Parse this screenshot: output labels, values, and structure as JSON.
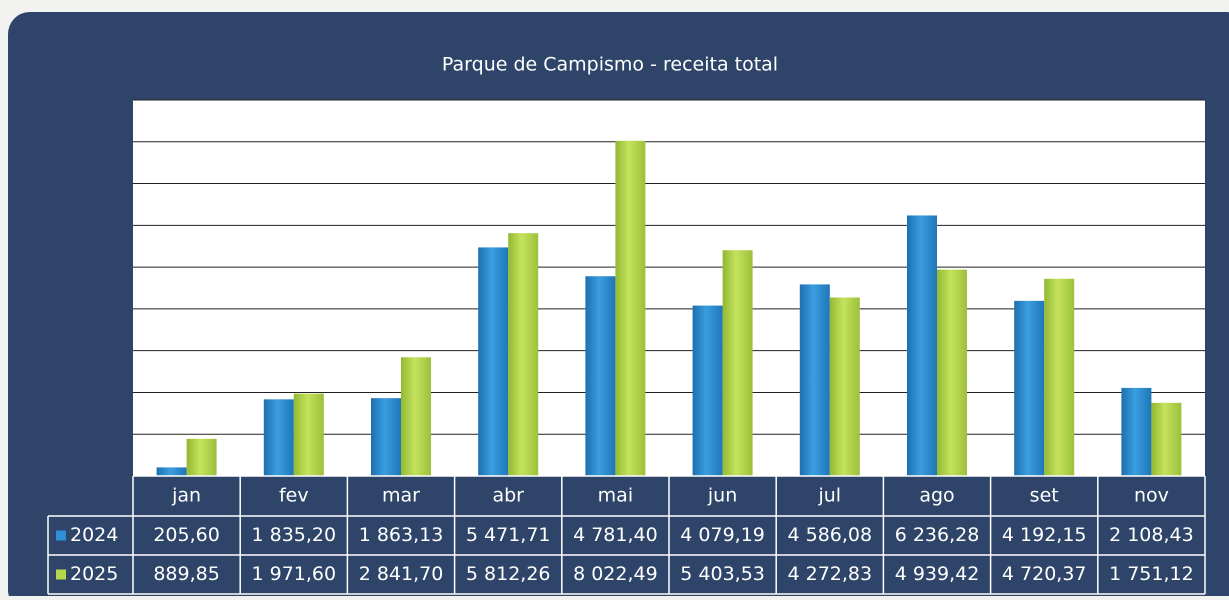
{
  "chart_data": {
    "type": "bar",
    "title": "Parque de Campismo - receita total",
    "categories": [
      "jan",
      "fev",
      "mar",
      "abr",
      "mai",
      "jun",
      "jul",
      "ago",
      "set",
      "nov"
    ],
    "series": [
      {
        "name": "2024",
        "color": "#2f8fd4",
        "values": [
          205.6,
          1835.2,
          1863.13,
          5471.71,
          4781.4,
          4079.19,
          4586.08,
          6236.28,
          4192.15,
          2108.43
        ],
        "value_labels": [
          "205,60",
          "1 835,20",
          "1 863,13",
          "5 471,71",
          "4 781,40",
          "4 079,19",
          "4 586,08",
          "6 236,28",
          "4 192,15",
          "2 108,43"
        ]
      },
      {
        "name": "2025",
        "color": "#b3d64a",
        "values": [
          889.85,
          1971.6,
          2841.7,
          5812.26,
          8022.49,
          5403.53,
          4272.83,
          4939.42,
          4720.37,
          1751.12
        ],
        "value_labels": [
          "889,85",
          "1 971,60",
          "2 841,70",
          "5 812,26",
          "8 022,49",
          "5 403,53",
          "4 272,83",
          "4 939,42",
          "4 720,37",
          "1 751,12"
        ]
      }
    ],
    "ylim": [
      0,
      9000
    ],
    "yticks": [
      0,
      1000,
      2000,
      3000,
      4000,
      5000,
      6000,
      7000,
      8000,
      9000
    ],
    "grid": true
  }
}
